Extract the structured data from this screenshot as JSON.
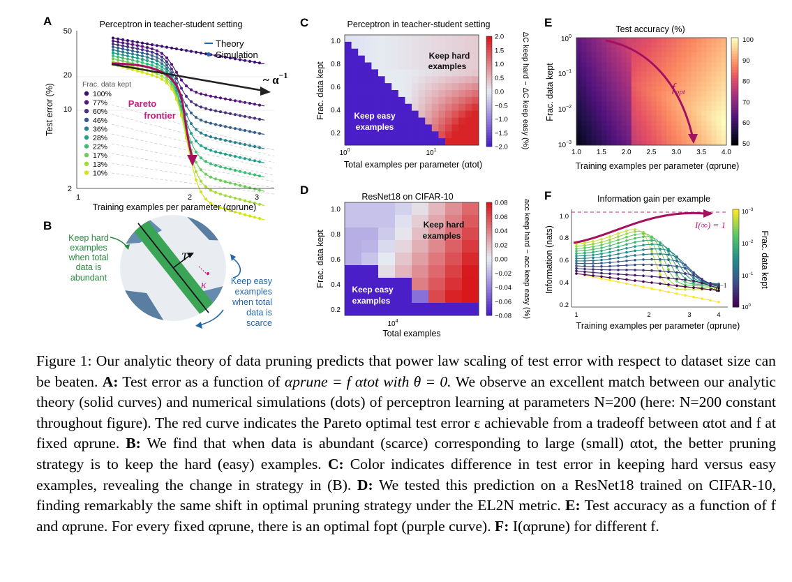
{
  "panels": {
    "A": {
      "letter": "A",
      "title": "Perceptron in teacher-student setting",
      "xlabel": "Training examples per parameter (αprune)",
      "ylabel": "Test error (%)",
      "yticks": [
        "50",
        "20",
        "10",
        "2"
      ],
      "xticks": [
        "1",
        "2",
        "3"
      ],
      "legend_theory": "Theory",
      "legend_sim": "Simulation",
      "frac_title": "Frac. data kept",
      "frac_items": [
        "100%",
        "77%",
        "60%",
        "46%",
        "36%",
        "28%",
        "22%",
        "17%",
        "13%",
        "10%"
      ],
      "frac_colors": [
        "#3b0f70",
        "#56147d",
        "#46327e",
        "#365c8d",
        "#277f8e",
        "#1fa187",
        "#3dbc74",
        "#6ccd5a",
        "#a5db36",
        "#d2e21b"
      ],
      "pareto_label_1": "Pareto",
      "pareto_label_2": "frontier",
      "scaling_label": "~ α",
      "scaling_exp": "−1"
    },
    "B": {
      "letter": "B",
      "hard_text": [
        "Keep hard",
        "examples",
        "when total",
        "data is",
        "abundant"
      ],
      "easy_text": [
        "Keep easy",
        "examples",
        "when total",
        "data is",
        "scarce"
      ],
      "T_label": "T",
      "kappa_label": "κ"
    },
    "C": {
      "letter": "C",
      "title": "Perceptron in teacher-student setting",
      "ylabel": "Frac. data kept",
      "xlabel": "Total examples per parameter (αtot)",
      "yticks": [
        "1.0",
        "0.8",
        "0.6",
        "0.4",
        "0.2"
      ],
      "xticks": [
        "10",
        "10"
      ],
      "xtick_exps": [
        "0",
        "1"
      ],
      "hard_label": [
        "Keep hard",
        "examples"
      ],
      "easy_label": [
        "Keep easy",
        "examples"
      ],
      "cbar_ticks": [
        "2.0",
        "1.5",
        "1.0",
        "0.5",
        "0.0",
        "−0.5",
        "−1.0",
        "−1.5",
        "−2.0"
      ],
      "cbar_label": "ΔC keep hard − ΔC keep easy (%)"
    },
    "D": {
      "letter": "D",
      "title": "ResNet18 on CIFAR-10",
      "ylabel": "Frac. data kept",
      "xlabel": "Total examples",
      "yticks": [
        "1.0",
        "0.8",
        "0.6",
        "0.4",
        "0.2"
      ],
      "xtick": "10",
      "xtick_exp": "4",
      "hard_label": [
        "Keep hard",
        "examples"
      ],
      "easy_label": [
        "Keep easy",
        "examples"
      ],
      "cbar_ticks": [
        "0.08",
        "0.06",
        "0.04",
        "0.02",
        "0.00",
        "−0.02",
        "−0.04",
        "−0.06",
        "−0.08"
      ],
      "cbar_label": "acc keep hard − acc keep easy (%)"
    },
    "E": {
      "letter": "E",
      "title": "Test accuracy (%)",
      "ylabel": "Frac. data kept",
      "xlabel": "Training examples per parameter (αprune)",
      "yticks_base": [
        "10",
        "10",
        "10",
        "10"
      ],
      "ytick_exps": [
        "0",
        "−1",
        "−2",
        "−3"
      ],
      "xticks": [
        "1.0",
        "1.5",
        "2.0",
        "2.5",
        "3.0",
        "3.5",
        "4.0"
      ],
      "cbar_ticks": [
        "100",
        "90",
        "80",
        "70",
        "60",
        "50"
      ],
      "fopt_label": "f",
      "fopt_sub": "opt"
    },
    "F": {
      "letter": "F",
      "title": "Information gain per example",
      "ylabel": "Information (nats)",
      "xlabel": "Training examples per parameter (αprune)",
      "yticks": [
        "1.0",
        "0.8",
        "0.6",
        "0.4",
        "0.2"
      ],
      "xticks": [
        "1",
        "2",
        "3",
        "4"
      ],
      "cbar_ticks_base": [
        "10",
        "10",
        "10",
        "10"
      ],
      "cbar_exps": [
        "−3",
        "−2",
        "−1",
        "0"
      ],
      "cbar_label": "Frac. data kept",
      "info_label": "I(∞) = 1",
      "scaling_label": "~α",
      "scaling_exp": "−1"
    }
  },
  "caption": {
    "fig_label": "Figure 1:",
    "intro": "Our analytic theory of data pruning predicts that power law scaling of test error with respect to dataset size can be beaten.",
    "a_label": "A:",
    "a_text_1": "Test error as a function of",
    "a_math": "αprune = f αtot with θ = 0.",
    "a_text_2": "We observe an excellent match between our analytic theory (solid curves) and numerical simulations (dots) of perceptron learning at parameters N=200 (here: N=200 constant throughout figure). The red curve indicates the Pareto optimal test error ε achievable from a tradeoff between αtot and f at fixed αprune.",
    "b_label": "B:",
    "b_text": "We find that when data is abundant (scarce) corresponding to large (small) αtot, the better pruning strategy is to keep the hard (easy) examples.",
    "c_label": "C:",
    "c_text": "Color indicates difference in test error in keeping hard versus easy examples, revealing the change in strategy in (B).",
    "d_label": "D:",
    "d_text": "We tested this prediction on a ResNet18 trained on CIFAR-10, finding remarkably the same shift in optimal pruning strategy under the EL2N metric.",
    "e_label": "E:",
    "e_text": "Test accuracy as a function of f and αprune. For every fixed αprune, there is an optimal fopt (purple curve).",
    "f_label": "F:",
    "f_text": "I(αprune) for different f."
  }
}
